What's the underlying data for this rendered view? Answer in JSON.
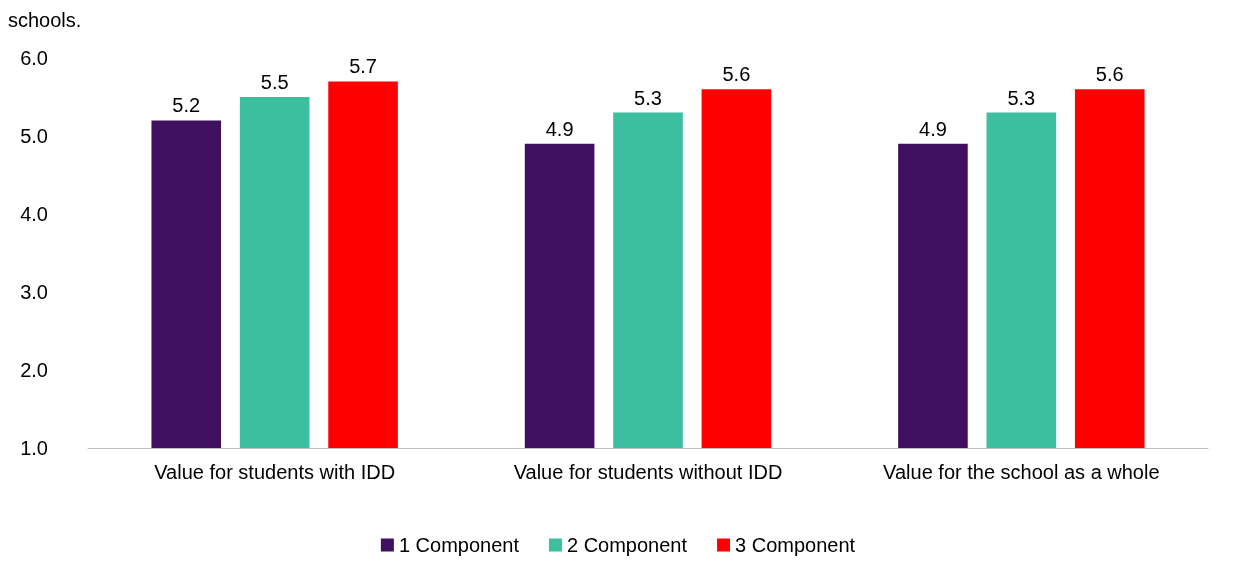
{
  "chart_data": {
    "type": "bar",
    "categories": [
      "Value for students with IDD",
      "Value for students without IDD",
      "Value for the school as a whole"
    ],
    "series": [
      {
        "name": "1 Component",
        "color": "#3f1060",
        "values": [
          5.2,
          4.9,
          4.9
        ]
      },
      {
        "name": "2 Component",
        "color": "#3bbf9f",
        "values": [
          5.5,
          5.3,
          5.3
        ]
      },
      {
        "name": "3 Component",
        "color": "#ff0000",
        "values": [
          5.7,
          5.6,
          5.6
        ]
      }
    ],
    "ylim": [
      1,
      6
    ],
    "yticks": [
      {
        "value": 1,
        "label": "1.0"
      },
      {
        "value": 2,
        "label": "2.0"
      },
      {
        "value": 3,
        "label": "3.0"
      },
      {
        "value": 4,
        "label": "4.0"
      },
      {
        "value": 5,
        "label": "5.0"
      },
      {
        "value": 6,
        "label": "6.0"
      }
    ],
    "grid": false,
    "legend": "bottom",
    "data_labels": true,
    "annotations": [
      "schools."
    ]
  }
}
